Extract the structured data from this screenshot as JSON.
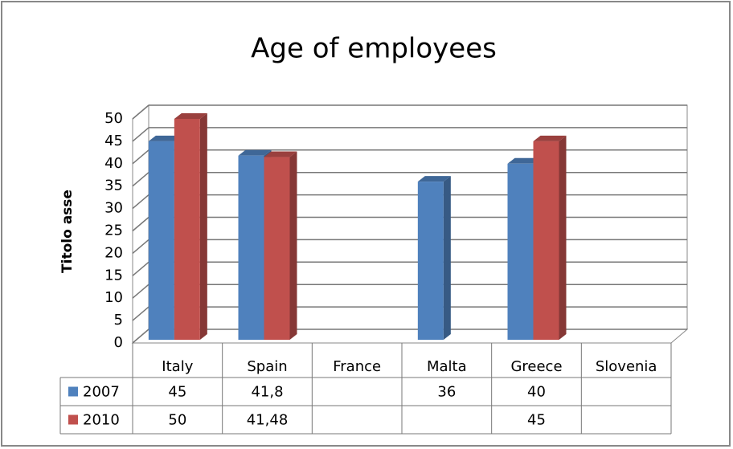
{
  "chart_data": {
    "type": "bar3d",
    "title": "Age of employees",
    "y_label": "Titolo asse",
    "categories": [
      "Italy",
      "Spain",
      "France",
      "Malta",
      "Greece",
      "Slovenia"
    ],
    "series": [
      {
        "name": "2007",
        "color": "#4f81bd",
        "values": [
          45,
          41.8,
          null,
          36,
          40,
          null
        ],
        "value_labels": [
          "45",
          "41,8",
          null,
          "36",
          "40",
          null
        ]
      },
      {
        "name": "2010",
        "color": "#c0504d",
        "values": [
          50,
          41.48,
          null,
          null,
          45,
          null
        ],
        "value_labels": [
          "50",
          "41,48",
          null,
          null,
          "45",
          null
        ]
      }
    ],
    "ylim": [
      0,
      50
    ],
    "yticks": [
      0,
      5,
      10,
      15,
      20,
      25,
      30,
      35,
      40,
      45,
      50
    ],
    "grid": true,
    "data_table": true
  }
}
